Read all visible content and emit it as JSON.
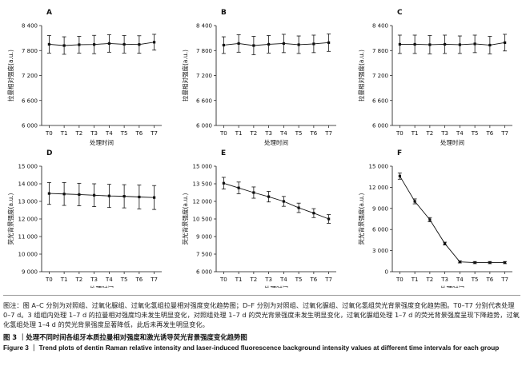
{
  "chart_data": [
    {
      "panel": "A",
      "type": "line",
      "categories": [
        "T0",
        "T1",
        "T2",
        "T3",
        "T4",
        "T5",
        "T6",
        "T7"
      ],
      "values": [
        7950,
        7920,
        7940,
        7945,
        7970,
        7950,
        7945,
        8000
      ],
      "errors": [
        210,
        210,
        200,
        220,
        210,
        210,
        210,
        190
      ],
      "ylim": [
        6000,
        8400
      ],
      "yticks": [
        6000,
        6600,
        7200,
        7800,
        8400
      ],
      "ytick_labels": [
        "6 000",
        "6 600",
        "7 200",
        "7 800",
        "8 400"
      ],
      "ylabel": "拉曼相对强度(a.u.)",
      "xlabel": "处理时间"
    },
    {
      "panel": "B",
      "type": "line",
      "categories": [
        "T0",
        "T1",
        "T2",
        "T3",
        "T4",
        "T5",
        "T6",
        "T7"
      ],
      "values": [
        7930,
        7970,
        7920,
        7950,
        7970,
        7940,
        7960,
        7990
      ],
      "errors": [
        200,
        210,
        220,
        210,
        220,
        210,
        210,
        210
      ],
      "ylim": [
        6000,
        8400
      ],
      "yticks": [
        6000,
        6600,
        7200,
        7800,
        8400
      ],
      "ytick_labels": [
        "6 000",
        "6 600",
        "7 200",
        "7 800",
        "8 400"
      ],
      "ylabel": "拉曼相对强度(a.u.)",
      "xlabel": "处理时间"
    },
    {
      "panel": "C",
      "type": "line",
      "categories": [
        "T0",
        "T1",
        "T2",
        "T3",
        "T4",
        "T5",
        "T6",
        "T7"
      ],
      "values": [
        7950,
        7950,
        7940,
        7950,
        7940,
        7960,
        7930,
        7990
      ],
      "errors": [
        220,
        220,
        220,
        220,
        210,
        210,
        210,
        200
      ],
      "ylim": [
        6000,
        8400
      ],
      "yticks": [
        6000,
        6600,
        7200,
        7800,
        8400
      ],
      "ytick_labels": [
        "6 000",
        "6 600",
        "7 200",
        "7 800",
        "8 400"
      ],
      "ylabel": "拉曼相对强度(a.u.)",
      "xlabel": "处理时间"
    },
    {
      "panel": "D",
      "type": "line",
      "categories": [
        "T0",
        "T1",
        "T2",
        "T3",
        "T4",
        "T5",
        "T6",
        "T7"
      ],
      "values": [
        13450,
        13420,
        13390,
        13350,
        13310,
        13290,
        13250,
        13220
      ],
      "errors": [
        620,
        650,
        640,
        650,
        660,
        660,
        680,
        680
      ],
      "ylim": [
        9000,
        15000
      ],
      "yticks": [
        9000,
        10000,
        11000,
        12000,
        13000,
        14000,
        15000
      ],
      "ytick_labels": [
        "9 000",
        "10 000",
        "11 000",
        "12 000",
        "13 000",
        "14 000",
        "15 000"
      ],
      "ylabel": "荧光背景强度(a.u.)",
      "xlabel": "处理时间"
    },
    {
      "panel": "E",
      "type": "line",
      "categories": [
        "T0",
        "T1",
        "T2",
        "T3",
        "T4",
        "T5",
        "T6",
        "T7"
      ],
      "values": [
        13550,
        13150,
        12750,
        12400,
        12000,
        11450,
        11000,
        10500
      ],
      "errors": [
        500,
        500,
        480,
        450,
        420,
        400,
        380,
        370
      ],
      "ylim": [
        6000,
        15000
      ],
      "yticks": [
        6000,
        7500,
        9000,
        10500,
        12000,
        13500,
        15000
      ],
      "ytick_labels": [
        "6 000",
        "7 500",
        "9 000",
        "10 500",
        "12 000",
        "13 500",
        "15 000"
      ],
      "ylabel": "荧光背景强度(a.u.)",
      "xlabel": "处理时间"
    },
    {
      "panel": "F",
      "type": "line",
      "categories": [
        "T0",
        "T1",
        "T2",
        "T3",
        "T4",
        "T5",
        "T6",
        "T7"
      ],
      "values": [
        13600,
        10000,
        7400,
        4000,
        1400,
        1300,
        1300,
        1300
      ],
      "errors": [
        450,
        350,
        300,
        200,
        150,
        150,
        150,
        150
      ],
      "ylim": [
        0,
        15000
      ],
      "yticks": [
        0,
        3000,
        6000,
        9000,
        12000,
        15000
      ],
      "ytick_labels": [
        "0",
        "3 000",
        "6 000",
        "9 000",
        "12 000",
        "15 000"
      ],
      "ylabel": "荧光背景强度(a.u.)",
      "xlabel": "处理时间"
    }
  ],
  "caption": {
    "note": "图注：图 A–C 分别为对照组、过氧化脲组、过氧化氢组拉曼相对强度变化趋势图；D–F 分别为对照组、过氧化脲组、过氧化氢组荧光背景强度变化趋势图。T0–T7 分别代表处理 0–7 d。3 组组内处理 1–7 d 的拉曼相对强度均未发生明显变化，对照组处理 1–7 d 的荧光背景强度未发生明显变化，过氧化脲组处理 1–7 d 的荧光背景强度呈现下降趋势，过氧化氢组处理 1–4 d 的荧光背景强度显著降低，此后未再发生明显变化。",
    "title_cn": "图 3 ｜处理不同时间各组牙本质拉曼相对强度和激光诱导荧光背景强度变化趋势图",
    "title_en": "Figure 3 ｜ Trend plots of dentin Raman relative intensity and laser-induced fluorescence background intensity values at different time intervals for each group"
  },
  "colors": {
    "line": "#111111",
    "axis": "#111111",
    "divider": "#999999"
  }
}
